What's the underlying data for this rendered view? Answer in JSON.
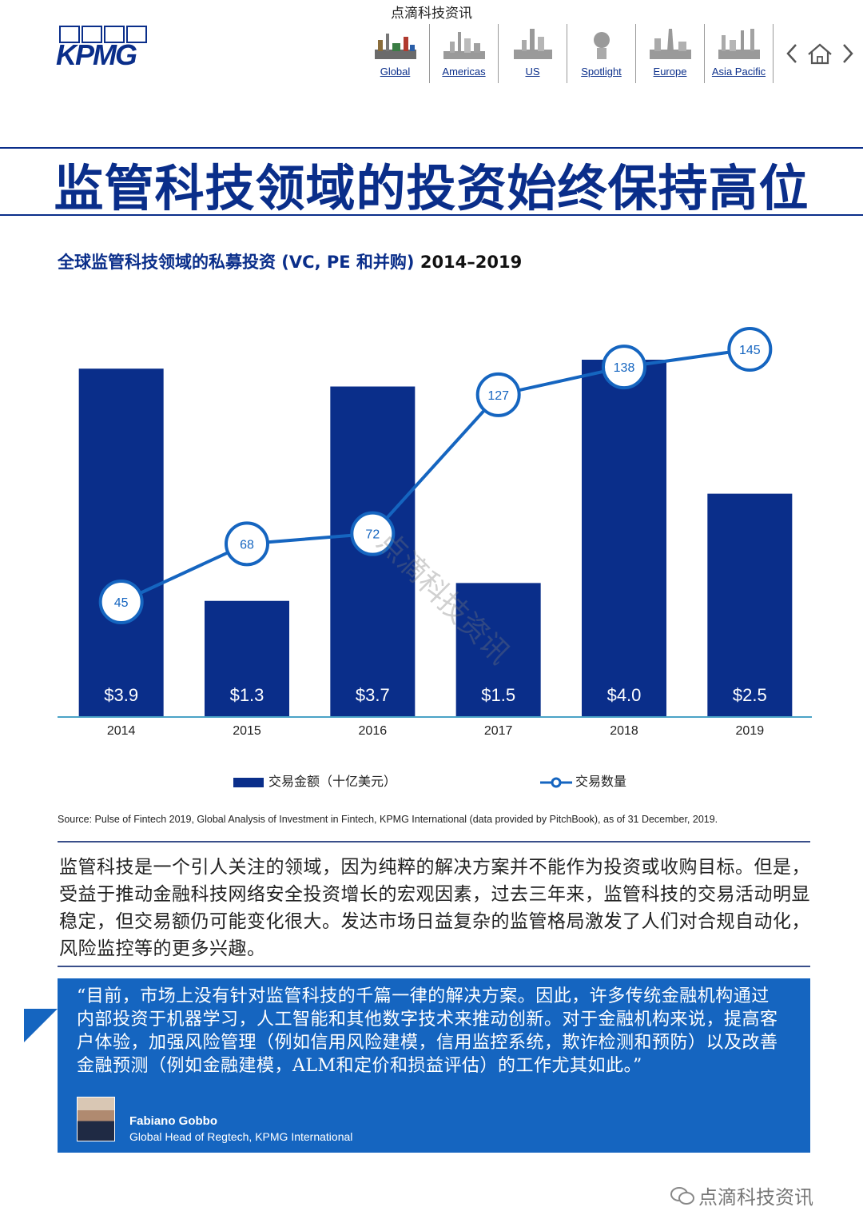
{
  "header": {
    "caption": "点滴科技资讯",
    "logo_text": "KPMG",
    "nav": [
      {
        "label": "Global",
        "icon": "global-skyline-icon"
      },
      {
        "label": "Americas",
        "icon": "americas-skyline-icon"
      },
      {
        "label": "US",
        "icon": "us-skyline-icon"
      },
      {
        "label": "Spotlight",
        "icon": "spotlight-icon"
      },
      {
        "label": "Europe",
        "icon": "europe-skyline-icon"
      },
      {
        "label": "Asia Pacific",
        "icon": "asia-pacific-skyline-icon"
      }
    ],
    "nav_controls": [
      "chevron-left-icon",
      "home-icon",
      "chevron-right-icon"
    ]
  },
  "page_title": "监管科技领域的投资始终保持高位",
  "chart_heading": {
    "main": "全球监管科技领域的私募投资 (VC, PE 和并购) ",
    "years": "2014–2019"
  },
  "chart_data": {
    "type": "bar",
    "categories": [
      "2014",
      "2015",
      "2016",
      "2017",
      "2018",
      "2019"
    ],
    "series": [
      {
        "name": "交易金额（十亿美元）",
        "type": "bar",
        "values": [
          3.9,
          1.3,
          3.7,
          1.5,
          4.0,
          2.5
        ],
        "labels": [
          "$3.9",
          "$1.3",
          "$3.7",
          "$1.5",
          "$4.0",
          "$2.5"
        ]
      },
      {
        "name": "交易数量",
        "type": "line",
        "values": [
          45,
          68,
          72,
          127,
          138,
          145
        ]
      }
    ],
    "legend": "bottom",
    "colors": {
      "bar": "#0a2e8a",
      "line": "#1565c0",
      "marker_fill": "#ffffff"
    },
    "grid": false
  },
  "source": "Source: Pulse of Fintech 2019, Global Analysis of Investment in Fintech, KPMG International (data provided by PitchBook), as of 31 December, 2019.",
  "body_text": "监管科技是一个引人关注的领域，因为纯粹的解决方案并不能作为投资或收购目标。但是，受益于推动金融科技网络安全投资增长的宏观因素，过去三年来，监管科技的交易活动明显稳定，但交易额仍可能变化很大。发达市场日益复杂的监管格局激发了人们对合规自动化，风险监控等的更多兴趣。",
  "quote": {
    "text": "“目前，市场上没有针对监管科技的千篇一律的解决方案。因此，许多传统金融机构通过内部投资于机器学习，人工智能和其他数字技术来推动创新。对于金融机构来说，提高客户体验，加强风险管理（例如信用风险建模，信用监控系统，欺诈检测和预防）以及改善金融预测（例如金融建模，ALM和定价和损益评估）的工作尤其如此。”",
    "name": "Fabiano Gobbo",
    "role": "Global Head of Regtech, KPMG International"
  },
  "footer": {
    "wechat": "点滴科技资讯",
    "icon": "wechat-icon"
  },
  "watermark": "点滴科技资讯"
}
